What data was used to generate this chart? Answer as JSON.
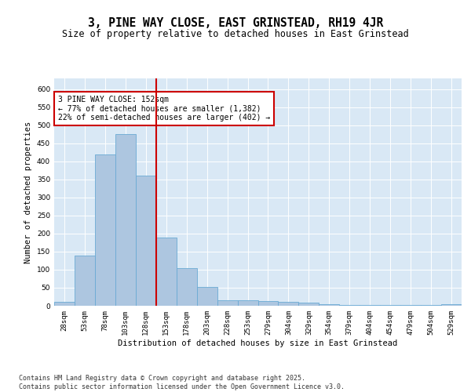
{
  "title": "3, PINE WAY CLOSE, EAST GRINSTEAD, RH19 4JR",
  "subtitle": "Size of property relative to detached houses in East Grinstead",
  "xlabel": "Distribution of detached houses by size in East Grinstead",
  "ylabel": "Number of detached properties",
  "categories": [
    "28sqm",
    "53sqm",
    "78sqm",
    "103sqm",
    "128sqm",
    "153sqm",
    "178sqm",
    "203sqm",
    "228sqm",
    "253sqm",
    "279sqm",
    "304sqm",
    "329sqm",
    "354sqm",
    "379sqm",
    "404sqm",
    "454sqm",
    "479sqm",
    "504sqm",
    "529sqm"
  ],
  "values": [
    10,
    140,
    420,
    475,
    360,
    190,
    105,
    53,
    16,
    15,
    12,
    10,
    8,
    5,
    2,
    2,
    2,
    2,
    2,
    5
  ],
  "bar_color": "#adc6e0",
  "bar_edge_color": "#6aaad4",
  "vline_color": "#cc0000",
  "vline_x_index": 4.5,
  "annotation_text": "3 PINE WAY CLOSE: 152sqm\n← 77% of detached houses are smaller (1,382)\n22% of semi-detached houses are larger (402) →",
  "annotation_box_facecolor": "#ffffff",
  "annotation_box_edgecolor": "#cc0000",
  "ylim": [
    0,
    630
  ],
  "yticks": [
    0,
    50,
    100,
    150,
    200,
    250,
    300,
    350,
    400,
    450,
    500,
    550,
    600
  ],
  "background_color": "#d9e8f5",
  "grid_color": "#ffffff",
  "footer_text": "Contains HM Land Registry data © Crown copyright and database right 2025.\nContains public sector information licensed under the Open Government Licence v3.0.",
  "title_fontsize": 10.5,
  "subtitle_fontsize": 8.5,
  "axis_label_fontsize": 7.5,
  "tick_fontsize": 6.5,
  "annotation_fontsize": 7,
  "footer_fontsize": 6
}
